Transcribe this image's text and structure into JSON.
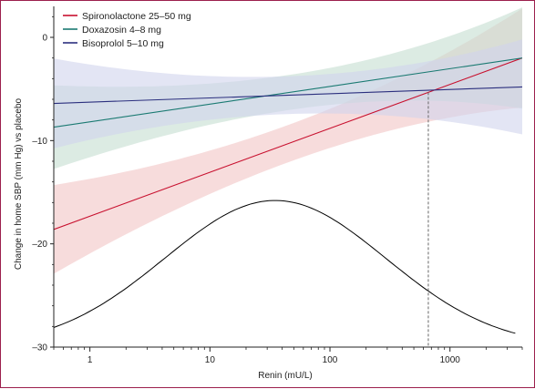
{
  "chart_data": {
    "type": "line",
    "xlabel": "Renin (mU/L)",
    "ylabel": "Change in home SBP (mm Hg) vs placebo",
    "x_scale": "log",
    "xlim": [
      0.5,
      4000
    ],
    "ylim": [
      -30,
      3
    ],
    "x_ticks": [
      {
        "value": 1,
        "label": "1"
      },
      {
        "value": 10,
        "label": "10"
      },
      {
        "value": 100,
        "label": "100"
      },
      {
        "value": 1000,
        "label": "1000"
      }
    ],
    "y_ticks": [
      {
        "value": 0,
        "label": "0"
      },
      {
        "value": -10,
        "label": "–10"
      },
      {
        "value": -20,
        "label": "–20"
      },
      {
        "value": -30,
        "label": "–30"
      }
    ],
    "legend_position": "top-left",
    "series": [
      {
        "name": "Spironolactone 25–50 mg",
        "color": "#c8102e",
        "band_color": "#f2c4c4",
        "x": [
          0.5,
          4000
        ],
        "y": [
          -18.6,
          -2.0
        ],
        "ci_lower": [
          -23.2,
          -6.0
        ],
        "ci_upper": [
          -14.6,
          3.6
        ]
      },
      {
        "name": "Doxazosin 4–8 mg",
        "color": "#1a7a72",
        "band_color": "#c4ddd0",
        "x": [
          0.5,
          4000
        ],
        "y": [
          -8.7,
          -2.0
        ],
        "ci_lower": [
          -12.8,
          -7.4
        ],
        "ci_upper": [
          -4.7,
          2.4
        ]
      },
      {
        "name": "Bisoprolol 5–10 mg",
        "color": "#2b2f7e",
        "band_color": "#d0d4ec",
        "x": [
          0.5,
          4000
        ],
        "y": [
          -6.4,
          -4.8
        ],
        "ci_lower": [
          -10.9,
          -9.4
        ],
        "ci_upper": [
          -2.2,
          -0.2
        ]
      }
    ],
    "distribution_curve": {
      "color": "#000000",
      "peak_x": 35,
      "peak_y": -15.8,
      "base_y": -30,
      "log_sd": 0.92,
      "x_range": [
        0.5,
        3500
      ]
    },
    "reference_line": {
      "x": 660,
      "style": "dashed",
      "color": "#666666"
    }
  }
}
